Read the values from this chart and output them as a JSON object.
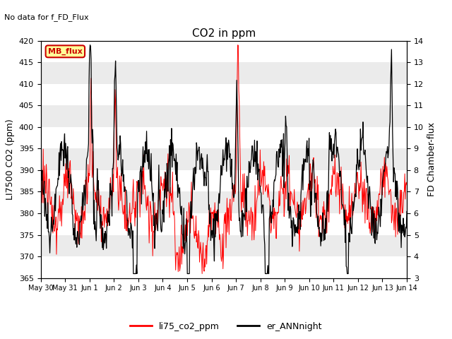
{
  "title": "CO2 in ppm",
  "top_label": "No data for f_FD_Flux",
  "ylabel_left": "LI7500 CO2 (ppm)",
  "ylabel_right": "FD Chamber-flux",
  "ylim_left": [
    365,
    420
  ],
  "ylim_right": [
    3.0,
    14.0
  ],
  "yticks_left": [
    365,
    370,
    375,
    380,
    385,
    390,
    395,
    400,
    405,
    410,
    415,
    420
  ],
  "yticks_right": [
    3.0,
    4.0,
    5.0,
    6.0,
    7.0,
    8.0,
    9.0,
    10.0,
    11.0,
    12.0,
    13.0,
    14.0
  ],
  "line1_color": "#ff0000",
  "line2_color": "#000000",
  "line1_label": "li75_co2_ppm",
  "line2_label": "er_ANNnight",
  "legend_box_color": "#ffff99",
  "legend_box_label": "MB_flux",
  "legend_box_edgecolor": "#cc0000",
  "background_color": "#ebebeb",
  "grid_color": "#ffffff",
  "title_fontsize": 11,
  "axis_fontsize": 9,
  "tick_fontsize": 8,
  "figsize": [
    6.4,
    4.8
  ],
  "dpi": 100
}
